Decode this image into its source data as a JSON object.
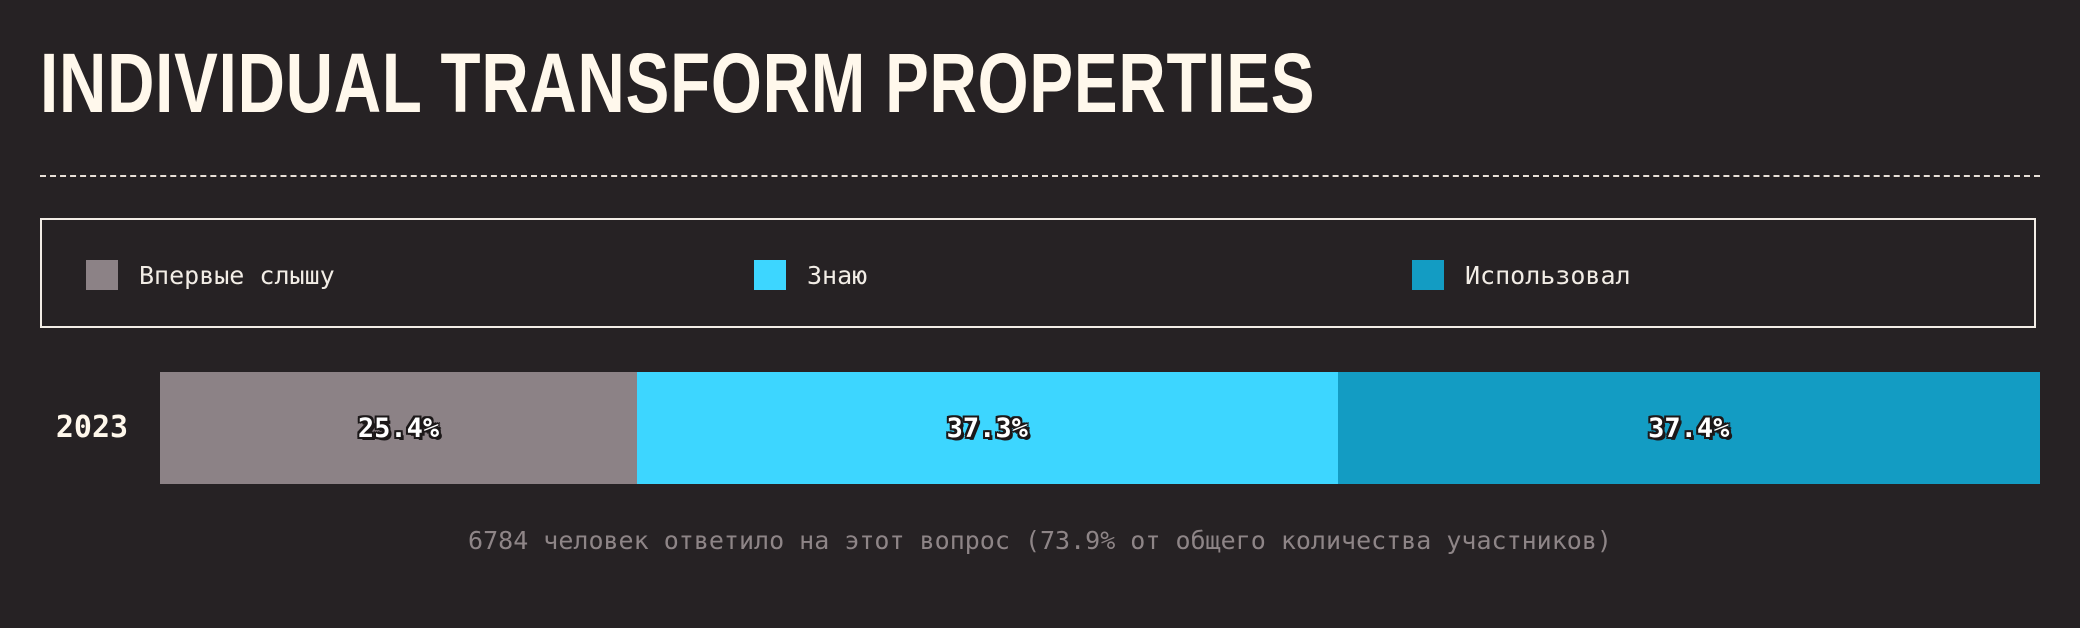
{
  "title": "INDIVIDUAL TRANSFORM PROPERTIES",
  "footnote": "6784 человек ответило на этот вопрос (73.9% от общего количества участников)",
  "chart_data": {
    "type": "bar",
    "orientation": "horizontal",
    "stacked": true,
    "categories": [
      "2023"
    ],
    "series": [
      {
        "name": "Впервые слышу",
        "values": [
          25.4
        ],
        "label": "25.4%",
        "color": "#8c8286"
      },
      {
        "name": "Знаю",
        "values": [
          37.3
        ],
        "label": "37.3%",
        "color": "#3dd6ff"
      },
      {
        "name": "Использовал",
        "values": [
          37.4
        ],
        "label": "37.4%",
        "color": "#139cc3"
      }
    ],
    "unit": "%",
    "legend": "top"
  }
}
